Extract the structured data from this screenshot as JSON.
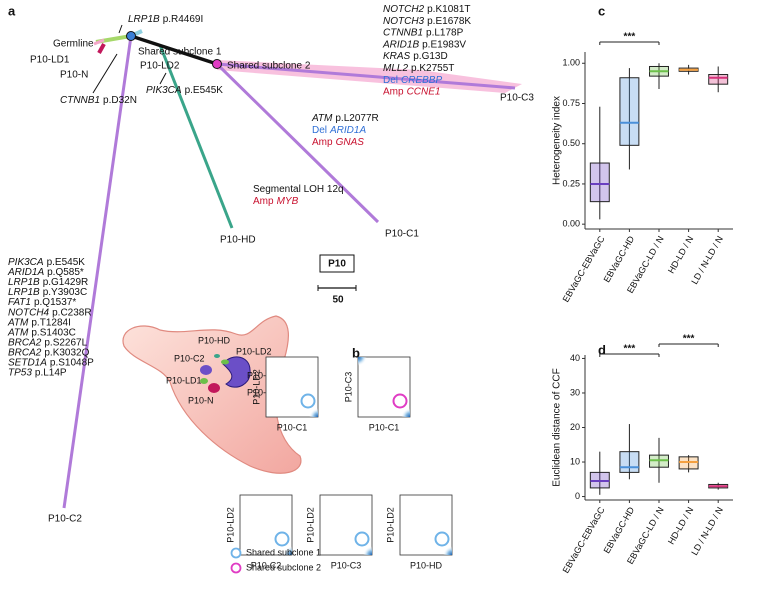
{
  "panel_a": {
    "label": "a",
    "tree_labels": [
      "Germline",
      "P10-LD1",
      "P10-N",
      "P10-LD2",
      "Shared subclone 1",
      "Shared subclone 2",
      "P10-C3",
      "P10-C1",
      "P10-HD",
      "P10-C2"
    ],
    "mutation_groups": [
      [
        {
          "gene": "LRP1B",
          "change": "p.R4469I"
        }
      ],
      [
        {
          "gene": "CTNNB1",
          "change": "p.D32N"
        }
      ],
      [
        {
          "gene": "PIK3CA",
          "change": "p.E545K"
        }
      ],
      [
        {
          "gene": "NOTCH2",
          "change": "p.K1081T"
        },
        {
          "gene": "NOTCH3",
          "change": "p.E1678K"
        },
        {
          "gene": "CTNNB1",
          "change": "p.L178P"
        },
        {
          "gene": "ARID1B",
          "change": "p.E1983V"
        },
        {
          "gene": "KRAS",
          "change": "p.G13D"
        },
        {
          "gene": "MLL2",
          "change": "p.K2755T"
        },
        {
          "event": "Del",
          "gene": "CREBBP",
          "color": "#2f6fd6"
        },
        {
          "event": "Amp",
          "gene": "CCNE1",
          "color": "#c8102e"
        }
      ],
      [
        {
          "gene": "ATM",
          "change": "p.L2077R"
        },
        {
          "event": "Del",
          "gene": "ARID1A",
          "color": "#2f6fd6"
        },
        {
          "event": "Amp",
          "gene": "GNAS",
          "color": "#c8102e"
        }
      ],
      [
        {
          "text": "Segmental LOH 12q"
        },
        {
          "event": "Amp",
          "gene": "MYB",
          "color": "#c8102e"
        }
      ],
      [
        {
          "gene": "PIK3CA",
          "change": "p.E545K"
        },
        {
          "gene": "ARID1A",
          "change": "p.Q585*"
        },
        {
          "gene": "LRP1B",
          "change": "p.G1429R"
        },
        {
          "gene": "LRP1B",
          "change": "p.Y3903C"
        },
        {
          "gene": "FAT1",
          "change": "p.Q1537*"
        },
        {
          "gene": "NOTCH4",
          "change": "p.C238R"
        },
        {
          "gene": "ATM",
          "change": "p.T1284I"
        },
        {
          "gene": "ATM",
          "change": "p.S1403C"
        },
        {
          "gene": "BRCA2",
          "change": "p.S2267L"
        },
        {
          "gene": "BRCA2",
          "change": "p.K3032Q"
        },
        {
          "gene": "SETD1A",
          "change": "p.S1048P"
        },
        {
          "gene": "TP53",
          "change": "p.L14P"
        }
      ]
    ],
    "patient": "P10",
    "scale_bar": "50",
    "stomach_labels": [
      "P10-HD",
      "P10-C2",
      "P10-LD2",
      "P10-LD1",
      "P10-C1",
      "P10-N",
      "P10-C3"
    ]
  },
  "panel_b": {
    "label": "b",
    "plots": [
      {
        "y": "P10-LD2",
        "x": "P10-C1"
      },
      {
        "y": "P10-C3",
        "x": "P10-C1"
      },
      {
        "y": "P10-LD2",
        "x": "P10-C2"
      },
      {
        "y": "P10-LD2",
        "x": "P10-C3"
      },
      {
        "y": "P10-LD2",
        "x": "P10-HD"
      }
    ]
  },
  "legend": [
    {
      "name": "Shared subclone 1",
      "color": "#6fb3e8"
    },
    {
      "name": "Shared subclone 2",
      "color": "#e03cc4"
    }
  ],
  "chart_data": [
    {
      "type": "box",
      "label": "c",
      "ylabel": "Heterogeneity index",
      "categories": [
        "EBVaGC-EBVaGC",
        "EBVaGC-HD",
        "EBVaGC-LD / N",
        "HD-LD / N",
        "LD / N-LD / N"
      ],
      "ylim": [
        -0.03,
        1.07
      ],
      "yticks": [
        {
          "value": 0,
          "label": "0.00"
        },
        {
          "value": 0.25,
          "label": "0.25"
        },
        {
          "value": 0.5,
          "label": "0.50"
        },
        {
          "value": 0.75,
          "label": "0.75"
        },
        {
          "value": 1,
          "label": "1.00"
        }
      ],
      "boxes": [
        {
          "min": 0.03,
          "q1": 0.14,
          "median": 0.25,
          "q3": 0.38,
          "max": 0.73,
          "color": "#6a3fc0"
        },
        {
          "min": 0.34,
          "q1": 0.49,
          "median": 0.63,
          "q3": 0.91,
          "max": 0.97,
          "color": "#4a90d9"
        },
        {
          "min": 0.84,
          "q1": 0.92,
          "median": 0.95,
          "q3": 0.98,
          "max": 1.0,
          "color": "#6cc04a"
        },
        {
          "min": 0.93,
          "q1": 0.95,
          "median": 0.96,
          "q3": 0.97,
          "max": 0.99,
          "color": "#f4a040"
        },
        {
          "min": 0.82,
          "q1": 0.87,
          "median": 0.91,
          "q3": 0.93,
          "max": 0.98,
          "color": "#d6317a"
        }
      ],
      "significance": [
        "***"
      ]
    },
    {
      "type": "box",
      "label": "d",
      "ylabel": "Euclidean distance of CCF",
      "categories": [
        "EBVaGC-EBVaGC",
        "EBVaGC-HD",
        "EBVaGC-LD / N",
        "HD-LD / N",
        "LD / N-LD / N"
      ],
      "ylim": [
        -1,
        41
      ],
      "yticks": [
        0,
        10,
        20,
        30,
        40
      ],
      "boxes": [
        {
          "min": 0.5,
          "q1": 2.5,
          "median": 4.5,
          "q3": 7,
          "max": 13,
          "color": "#6a3fc0"
        },
        {
          "min": 5,
          "q1": 7,
          "median": 8.5,
          "q3": 13,
          "max": 21,
          "color": "#4a90d9"
        },
        {
          "min": 4,
          "q1": 8.5,
          "median": 10.5,
          "q3": 12,
          "max": 17,
          "color": "#6cc04a"
        },
        {
          "min": 7,
          "q1": 8,
          "median": 10,
          "q3": 11.5,
          "max": 12,
          "color": "#f4a040"
        },
        {
          "min": 2,
          "q1": 2.5,
          "median": 3,
          "q3": 3.5,
          "max": 4,
          "color": "#d6317a"
        }
      ],
      "significance": [
        "***",
        "***"
      ]
    }
  ]
}
